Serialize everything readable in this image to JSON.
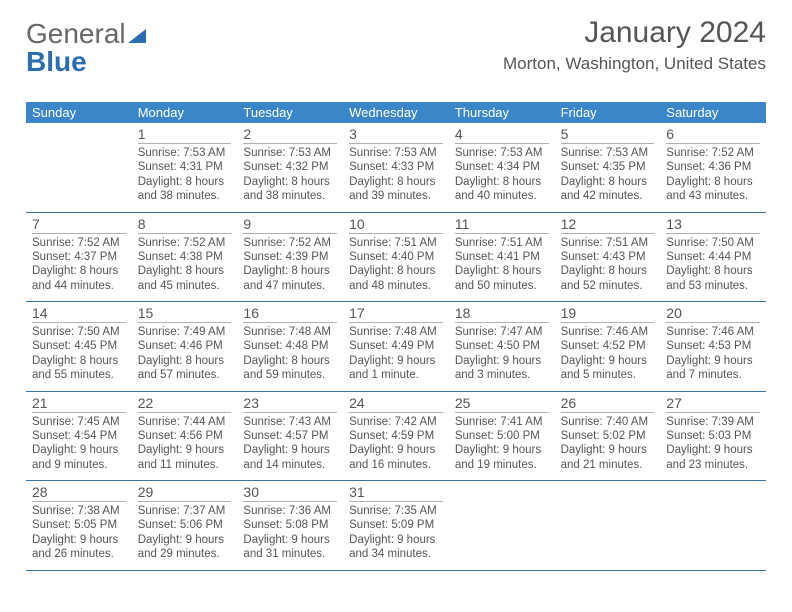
{
  "logo": {
    "part1": "General",
    "part2": "Blue"
  },
  "title": "January 2024",
  "location": "Morton, Washington, United States",
  "colors": {
    "header_bg": "#3a86c8",
    "header_text": "#ffffff",
    "week_border": "#3a74a8",
    "text": "#555555",
    "logo_gray": "#676767",
    "logo_blue": "#2a6db0"
  },
  "typography": {
    "title_fontsize": 30,
    "location_fontsize": 17,
    "dayheader_fontsize": 13,
    "daynum_fontsize": 14,
    "body_fontsize": 11.5
  },
  "day_headers": [
    "Sunday",
    "Monday",
    "Tuesday",
    "Wednesday",
    "Thursday",
    "Friday",
    "Saturday"
  ],
  "weeks": [
    [
      {
        "blank": true
      },
      {
        "day": "1",
        "sunrise": "Sunrise: 7:53 AM",
        "sunset": "Sunset: 4:31 PM",
        "daylight1": "Daylight: 8 hours",
        "daylight2": "and 38 minutes."
      },
      {
        "day": "2",
        "sunrise": "Sunrise: 7:53 AM",
        "sunset": "Sunset: 4:32 PM",
        "daylight1": "Daylight: 8 hours",
        "daylight2": "and 38 minutes."
      },
      {
        "day": "3",
        "sunrise": "Sunrise: 7:53 AM",
        "sunset": "Sunset: 4:33 PM",
        "daylight1": "Daylight: 8 hours",
        "daylight2": "and 39 minutes."
      },
      {
        "day": "4",
        "sunrise": "Sunrise: 7:53 AM",
        "sunset": "Sunset: 4:34 PM",
        "daylight1": "Daylight: 8 hours",
        "daylight2": "and 40 minutes."
      },
      {
        "day": "5",
        "sunrise": "Sunrise: 7:53 AM",
        "sunset": "Sunset: 4:35 PM",
        "daylight1": "Daylight: 8 hours",
        "daylight2": "and 42 minutes."
      },
      {
        "day": "6",
        "sunrise": "Sunrise: 7:52 AM",
        "sunset": "Sunset: 4:36 PM",
        "daylight1": "Daylight: 8 hours",
        "daylight2": "and 43 minutes."
      }
    ],
    [
      {
        "day": "7",
        "sunrise": "Sunrise: 7:52 AM",
        "sunset": "Sunset: 4:37 PM",
        "daylight1": "Daylight: 8 hours",
        "daylight2": "and 44 minutes."
      },
      {
        "day": "8",
        "sunrise": "Sunrise: 7:52 AM",
        "sunset": "Sunset: 4:38 PM",
        "daylight1": "Daylight: 8 hours",
        "daylight2": "and 45 minutes."
      },
      {
        "day": "9",
        "sunrise": "Sunrise: 7:52 AM",
        "sunset": "Sunset: 4:39 PM",
        "daylight1": "Daylight: 8 hours",
        "daylight2": "and 47 minutes."
      },
      {
        "day": "10",
        "sunrise": "Sunrise: 7:51 AM",
        "sunset": "Sunset: 4:40 PM",
        "daylight1": "Daylight: 8 hours",
        "daylight2": "and 48 minutes."
      },
      {
        "day": "11",
        "sunrise": "Sunrise: 7:51 AM",
        "sunset": "Sunset: 4:41 PM",
        "daylight1": "Daylight: 8 hours",
        "daylight2": "and 50 minutes."
      },
      {
        "day": "12",
        "sunrise": "Sunrise: 7:51 AM",
        "sunset": "Sunset: 4:43 PM",
        "daylight1": "Daylight: 8 hours",
        "daylight2": "and 52 minutes."
      },
      {
        "day": "13",
        "sunrise": "Sunrise: 7:50 AM",
        "sunset": "Sunset: 4:44 PM",
        "daylight1": "Daylight: 8 hours",
        "daylight2": "and 53 minutes."
      }
    ],
    [
      {
        "day": "14",
        "sunrise": "Sunrise: 7:50 AM",
        "sunset": "Sunset: 4:45 PM",
        "daylight1": "Daylight: 8 hours",
        "daylight2": "and 55 minutes."
      },
      {
        "day": "15",
        "sunrise": "Sunrise: 7:49 AM",
        "sunset": "Sunset: 4:46 PM",
        "daylight1": "Daylight: 8 hours",
        "daylight2": "and 57 minutes."
      },
      {
        "day": "16",
        "sunrise": "Sunrise: 7:48 AM",
        "sunset": "Sunset: 4:48 PM",
        "daylight1": "Daylight: 8 hours",
        "daylight2": "and 59 minutes."
      },
      {
        "day": "17",
        "sunrise": "Sunrise: 7:48 AM",
        "sunset": "Sunset: 4:49 PM",
        "daylight1": "Daylight: 9 hours",
        "daylight2": "and 1 minute."
      },
      {
        "day": "18",
        "sunrise": "Sunrise: 7:47 AM",
        "sunset": "Sunset: 4:50 PM",
        "daylight1": "Daylight: 9 hours",
        "daylight2": "and 3 minutes."
      },
      {
        "day": "19",
        "sunrise": "Sunrise: 7:46 AM",
        "sunset": "Sunset: 4:52 PM",
        "daylight1": "Daylight: 9 hours",
        "daylight2": "and 5 minutes."
      },
      {
        "day": "20",
        "sunrise": "Sunrise: 7:46 AM",
        "sunset": "Sunset: 4:53 PM",
        "daylight1": "Daylight: 9 hours",
        "daylight2": "and 7 minutes."
      }
    ],
    [
      {
        "day": "21",
        "sunrise": "Sunrise: 7:45 AM",
        "sunset": "Sunset: 4:54 PM",
        "daylight1": "Daylight: 9 hours",
        "daylight2": "and 9 minutes."
      },
      {
        "day": "22",
        "sunrise": "Sunrise: 7:44 AM",
        "sunset": "Sunset: 4:56 PM",
        "daylight1": "Daylight: 9 hours",
        "daylight2": "and 11 minutes."
      },
      {
        "day": "23",
        "sunrise": "Sunrise: 7:43 AM",
        "sunset": "Sunset: 4:57 PM",
        "daylight1": "Daylight: 9 hours",
        "daylight2": "and 14 minutes."
      },
      {
        "day": "24",
        "sunrise": "Sunrise: 7:42 AM",
        "sunset": "Sunset: 4:59 PM",
        "daylight1": "Daylight: 9 hours",
        "daylight2": "and 16 minutes."
      },
      {
        "day": "25",
        "sunrise": "Sunrise: 7:41 AM",
        "sunset": "Sunset: 5:00 PM",
        "daylight1": "Daylight: 9 hours",
        "daylight2": "and 19 minutes."
      },
      {
        "day": "26",
        "sunrise": "Sunrise: 7:40 AM",
        "sunset": "Sunset: 5:02 PM",
        "daylight1": "Daylight: 9 hours",
        "daylight2": "and 21 minutes."
      },
      {
        "day": "27",
        "sunrise": "Sunrise: 7:39 AM",
        "sunset": "Sunset: 5:03 PM",
        "daylight1": "Daylight: 9 hours",
        "daylight2": "and 23 minutes."
      }
    ],
    [
      {
        "day": "28",
        "sunrise": "Sunrise: 7:38 AM",
        "sunset": "Sunset: 5:05 PM",
        "daylight1": "Daylight: 9 hours",
        "daylight2": "and 26 minutes."
      },
      {
        "day": "29",
        "sunrise": "Sunrise: 7:37 AM",
        "sunset": "Sunset: 5:06 PM",
        "daylight1": "Daylight: 9 hours",
        "daylight2": "and 29 minutes."
      },
      {
        "day": "30",
        "sunrise": "Sunrise: 7:36 AM",
        "sunset": "Sunset: 5:08 PM",
        "daylight1": "Daylight: 9 hours",
        "daylight2": "and 31 minutes."
      },
      {
        "day": "31",
        "sunrise": "Sunrise: 7:35 AM",
        "sunset": "Sunset: 5:09 PM",
        "daylight1": "Daylight: 9 hours",
        "daylight2": "and 34 minutes."
      },
      {
        "blank": true
      },
      {
        "blank": true
      },
      {
        "blank": true
      }
    ]
  ]
}
